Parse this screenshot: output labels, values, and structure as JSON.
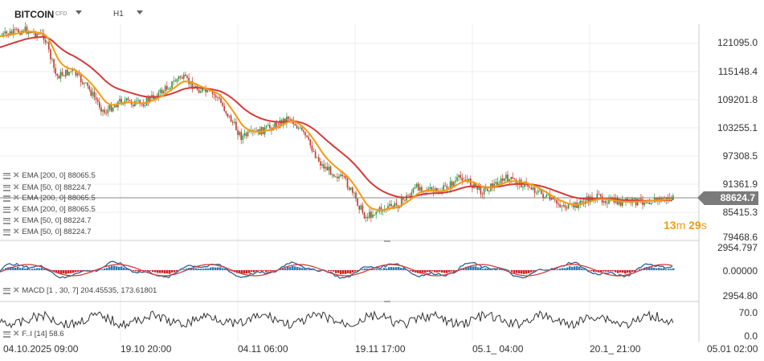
{
  "header": {
    "symbol": "BITCOIN",
    "badge": "CFD",
    "timeframe": "H1"
  },
  "price_axis": [
    "121095.0",
    "115148.4",
    "109201.8",
    "103255.1",
    "97308.5",
    "91361.9",
    "85415.3",
    "79468.6"
  ],
  "current_price": "88624.7",
  "countdown": {
    "min": "13",
    "min_unit": "m",
    "sec": "29",
    "sec_unit": "s"
  },
  "legends": [
    "EMA [200,  0]  88065.5",
    "EMA [50,  0]  88224.7",
    "EMA [200,  0]  88065.5",
    "EMA [200,  0]  88065.5",
    "EMA [50,  0]  88224.7",
    "EMA [50,  0]  88224.7"
  ],
  "macd": {
    "legend": "MACD [1 , 30, 7] 204.45535,   173.61801",
    "axis": [
      "2954.797",
      "0.00000",
      "2954.80"
    ]
  },
  "rsi": {
    "legend": "F..I [14] 58.6",
    "axis": [
      "70.0",
      "0.0"
    ]
  },
  "time_axis": [
    "04.10.2025  09:00",
    "19.10  20:00",
    "04.11  06:00",
    "19.11  17:00",
    "05.1_  04:00",
    "20.1_  21:00",
    "05.01  02:00"
  ],
  "colors": {
    "ema200": "#d63b3b",
    "ema50": "#f39c12",
    "macd_pos": "#2a7ab8",
    "macd_neg": "#d01f1f",
    "rsi": "#333333",
    "price_line": "#888888"
  }
}
